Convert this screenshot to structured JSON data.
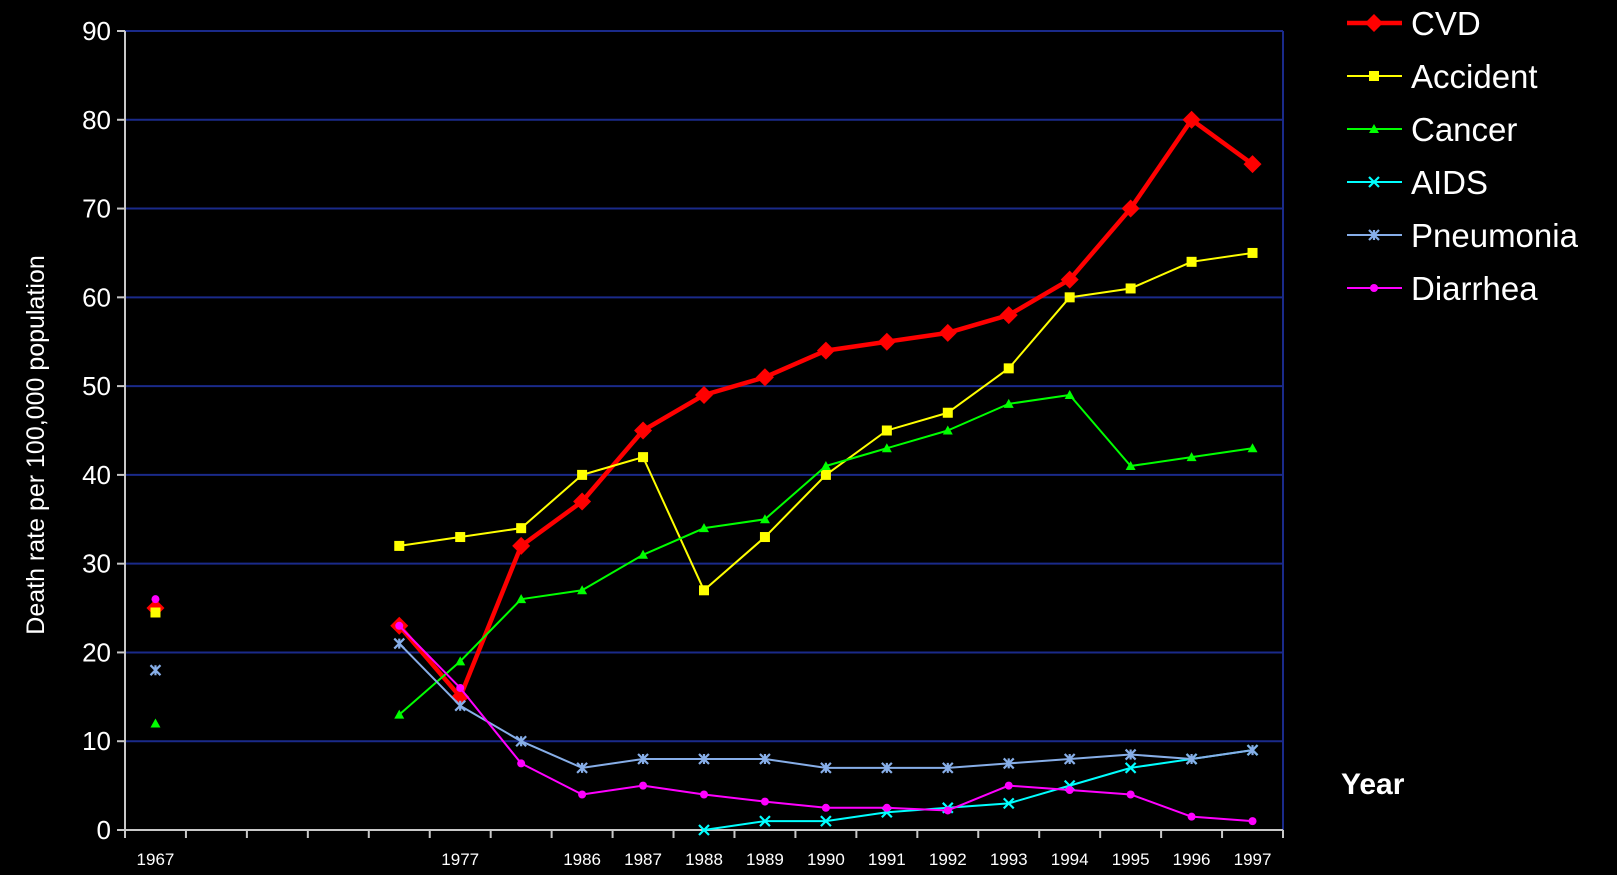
{
  "chart_data": {
    "type": "line",
    "title": "",
    "ylabel": "Death rate per 100,000 population",
    "xlabel": "Year",
    "ylim": [
      0,
      90
    ],
    "yticks": [
      0,
      10,
      20,
      30,
      40,
      50,
      60,
      70,
      80,
      90
    ],
    "x_tick_labels": [
      "1967",
      "1977",
      "1986",
      "1987",
      "1988",
      "1989",
      "1990",
      "1991",
      "1992",
      "1993",
      "1994",
      "1995",
      "1996",
      "1997"
    ],
    "grid": "horizontal",
    "legend_position": "top-right",
    "series": [
      {
        "name": "CVD",
        "color": "#ff0000",
        "marker": "diamond",
        "points": [
          {
            "x": "1967",
            "y": 25
          },
          {
            "x": "1976",
            "y": 23
          },
          {
            "x": "1977",
            "y": 15
          },
          {
            "x": "1978",
            "y": 32
          },
          {
            "x": "1986",
            "y": 37
          },
          {
            "x": "1987",
            "y": 45
          },
          {
            "x": "1988",
            "y": 49
          },
          {
            "x": "1989",
            "y": 51
          },
          {
            "x": "1990",
            "y": 54
          },
          {
            "x": "1991",
            "y": 55
          },
          {
            "x": "1992",
            "y": 56
          },
          {
            "x": "1993",
            "y": 58
          },
          {
            "x": "1994",
            "y": 62
          },
          {
            "x": "1995",
            "y": 70
          },
          {
            "x": "1996",
            "y": 80
          },
          {
            "x": "1997",
            "y": 75
          }
        ]
      },
      {
        "name": "Accident",
        "color": "#ffff00",
        "marker": "square",
        "points": [
          {
            "x": "1967",
            "y": 24.5
          },
          {
            "x": "1976",
            "y": 32
          },
          {
            "x": "1977",
            "y": 33
          },
          {
            "x": "1978",
            "y": 34
          },
          {
            "x": "1986",
            "y": 40
          },
          {
            "x": "1987",
            "y": 42
          },
          {
            "x": "1988",
            "y": 27
          },
          {
            "x": "1989",
            "y": 33
          },
          {
            "x": "1990",
            "y": 40
          },
          {
            "x": "1991",
            "y": 45
          },
          {
            "x": "1992",
            "y": 47
          },
          {
            "x": "1993",
            "y": 52
          },
          {
            "x": "1994",
            "y": 60
          },
          {
            "x": "1995",
            "y": 61
          },
          {
            "x": "1996",
            "y": 64
          },
          {
            "x": "1997",
            "y": 65
          }
        ]
      },
      {
        "name": "Cancer",
        "color": "#00ff00",
        "marker": "triangle",
        "points": [
          {
            "x": "1967",
            "y": 12
          },
          {
            "x": "1976",
            "y": 13
          },
          {
            "x": "1977",
            "y": 19
          },
          {
            "x": "1978",
            "y": 26
          },
          {
            "x": "1986",
            "y": 27
          },
          {
            "x": "1987",
            "y": 31
          },
          {
            "x": "1988",
            "y": 34
          },
          {
            "x": "1989",
            "y": 35
          },
          {
            "x": "1990",
            "y": 41
          },
          {
            "x": "1991",
            "y": 43
          },
          {
            "x": "1992",
            "y": 45
          },
          {
            "x": "1993",
            "y": 48
          },
          {
            "x": "1994",
            "y": 49
          },
          {
            "x": "1995",
            "y": 41
          },
          {
            "x": "1996",
            "y": 42
          },
          {
            "x": "1997",
            "y": 43
          }
        ]
      },
      {
        "name": "AIDS",
        "color": "#00ffff",
        "marker": "x",
        "points": [
          {
            "x": "1988",
            "y": 0
          },
          {
            "x": "1989",
            "y": 1
          },
          {
            "x": "1990",
            "y": 1
          },
          {
            "x": "1991",
            "y": 2
          },
          {
            "x": "1992",
            "y": 2.5
          },
          {
            "x": "1993",
            "y": 3
          },
          {
            "x": "1994",
            "y": 5
          },
          {
            "x": "1995",
            "y": 7
          },
          {
            "x": "1996",
            "y": 8
          },
          {
            "x": "1997",
            "y": 9
          }
        ]
      },
      {
        "name": "Pneumonia",
        "color": "#87aee8",
        "marker": "star",
        "points": [
          {
            "x": "1967",
            "y": 18
          },
          {
            "x": "1976",
            "y": 21
          },
          {
            "x": "1977",
            "y": 14
          },
          {
            "x": "1978",
            "y": 10
          },
          {
            "x": "1986",
            "y": 7
          },
          {
            "x": "1987",
            "y": 8
          },
          {
            "x": "1988",
            "y": 8
          },
          {
            "x": "1989",
            "y": 8
          },
          {
            "x": "1990",
            "y": 7
          },
          {
            "x": "1991",
            "y": 7
          },
          {
            "x": "1992",
            "y": 7
          },
          {
            "x": "1993",
            "y": 7.5
          },
          {
            "x": "1994",
            "y": 8
          },
          {
            "x": "1995",
            "y": 8.5
          },
          {
            "x": "1996",
            "y": 8
          },
          {
            "x": "1997",
            "y": 9
          }
        ]
      },
      {
        "name": "Diarrhea",
        "color": "#ff00ff",
        "marker": "circle",
        "points": [
          {
            "x": "1967",
            "y": 26
          },
          {
            "x": "1976",
            "y": 23
          },
          {
            "x": "1977",
            "y": 16
          },
          {
            "x": "1978",
            "y": 7.5
          },
          {
            "x": "1986",
            "y": 4
          },
          {
            "x": "1987",
            "y": 5
          },
          {
            "x": "1988",
            "y": 4
          },
          {
            "x": "1989",
            "y": 3.2
          },
          {
            "x": "1990",
            "y": 2.5
          },
          {
            "x": "1991",
            "y": 2.5
          },
          {
            "x": "1992",
            "y": 2.2
          },
          {
            "x": "1993",
            "y": 5
          },
          {
            "x": "1994",
            "y": 4.5
          },
          {
            "x": "1995",
            "y": 4
          },
          {
            "x": "1996",
            "y": 1.5
          },
          {
            "x": "1997",
            "y": 1
          }
        ]
      }
    ]
  }
}
